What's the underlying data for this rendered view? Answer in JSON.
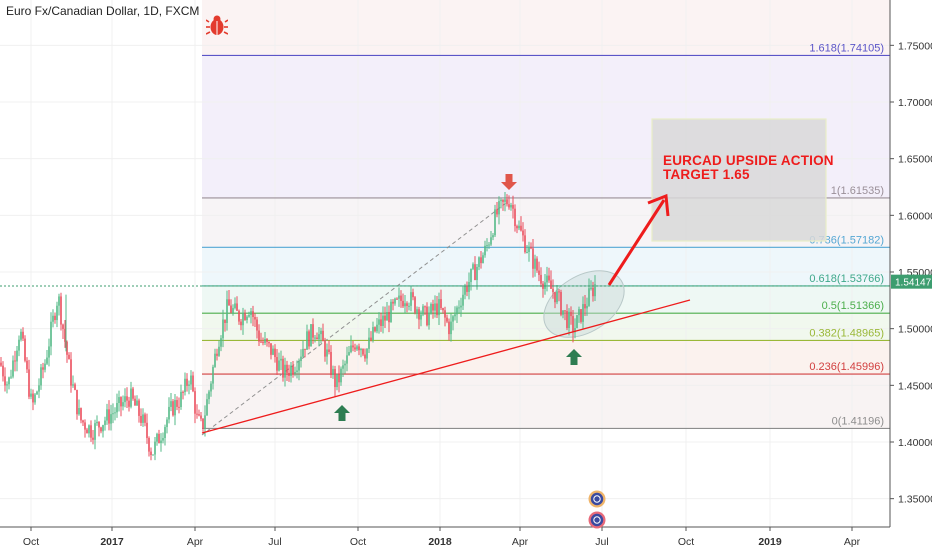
{
  "symbol_title": "Euro Fx/Canadian Dollar, 1D, FXCM",
  "annotation": {
    "line1": "EURCAD UPSIDE ACTION",
    "line2": "TARGET 1.65"
  },
  "icons": {
    "bug": "bug-icon",
    "up_arrow": "up-arrow-icon",
    "down_arrow": "down-arrow-icon",
    "event_badge": "event-badge-icon"
  },
  "colors": {
    "bug": "#e33b2e",
    "candle_up": "#53b987",
    "candle_down": "#eb4d5c",
    "arrow_up": "#2e7d52",
    "arrow_down": "#e0564a",
    "annotation": "#ee1c1c",
    "trendline": "#ee1c1c",
    "last_price_bg": "#3c9d6f"
  },
  "chart_data": {
    "type": "candlestick",
    "symbol": "Euro Fx/Canadian Dollar",
    "timeframe": "1D",
    "source": "FXCM",
    "ylim": [
      1.325,
      1.79
    ],
    "y_ticks": [
      "1.35000",
      "1.40000",
      "1.45000",
      "1.50000",
      "1.55000",
      "1.60000",
      "1.65000",
      "1.70000",
      "1.75000"
    ],
    "x_ticks": [
      "Oct",
      "2017",
      "Apr",
      "Jul",
      "Oct",
      "2018",
      "Apr",
      "Jul",
      "Oct",
      "2019",
      "Apr"
    ],
    "last_price": "1.54147",
    "fib_levels": [
      {
        "label": "1.618(1.74105)",
        "value": 1.74105,
        "color": "#5b55c8"
      },
      {
        "label": "1(1.61535)",
        "value": 1.61535,
        "color": "#9a8f98"
      },
      {
        "label": "0.786(1.57182)",
        "value": 1.57182,
        "color": "#55a7d4"
      },
      {
        "label": "0.618(1.53766)",
        "value": 1.53766,
        "color": "#3fa88a"
      },
      {
        "label": "0.5(1.51366)",
        "value": 1.51366,
        "color": "#4cae4c"
      },
      {
        "label": "0.382(1.48965)",
        "value": 1.48965,
        "color": "#9ab838"
      },
      {
        "label": "0.236(1.45996)",
        "value": 1.45996,
        "color": "#d24040"
      },
      {
        "label": "0(1.41196)",
        "value": 1.41196,
        "color": "#8d8d8d"
      }
    ],
    "price_path": [
      [
        0,
        1.47
      ],
      [
        8,
        1.45
      ],
      [
        20,
        1.5
      ],
      [
        32,
        1.43
      ],
      [
        45,
        1.47
      ],
      [
        58,
        1.53
      ],
      [
        70,
        1.46
      ],
      [
        80,
        1.42
      ],
      [
        92,
        1.41
      ],
      [
        105,
        1.42
      ],
      [
        118,
        1.43
      ],
      [
        130,
        1.44
      ],
      [
        142,
        1.42
      ],
      [
        152,
        1.39
      ],
      [
        162,
        1.41
      ],
      [
        172,
        1.43
      ],
      [
        182,
        1.44
      ],
      [
        190,
        1.46
      ],
      [
        197,
        1.42
      ],
      [
        202,
        1.412
      ],
      [
        210,
        1.45
      ],
      [
        218,
        1.49
      ],
      [
        228,
        1.52
      ],
      [
        240,
        1.51
      ],
      [
        250,
        1.52
      ],
      [
        260,
        1.49
      ],
      [
        272,
        1.48
      ],
      [
        284,
        1.46
      ],
      [
        296,
        1.47
      ],
      [
        306,
        1.49
      ],
      [
        316,
        1.5
      ],
      [
        326,
        1.48
      ],
      [
        336,
        1.45
      ],
      [
        346,
        1.47
      ],
      [
        356,
        1.49
      ],
      [
        366,
        1.48
      ],
      [
        376,
        1.5
      ],
      [
        386,
        1.51
      ],
      [
        396,
        1.52
      ],
      [
        406,
        1.53
      ],
      [
        416,
        1.52
      ],
      [
        426,
        1.51
      ],
      [
        438,
        1.52
      ],
      [
        450,
        1.5
      ],
      [
        462,
        1.53
      ],
      [
        474,
        1.55
      ],
      [
        486,
        1.57
      ],
      [
        496,
        1.6
      ],
      [
        504,
        1.61
      ],
      [
        510,
        1.615
      ],
      [
        518,
        1.59
      ],
      [
        528,
        1.57
      ],
      [
        538,
        1.55
      ],
      [
        546,
        1.54
      ],
      [
        556,
        1.53
      ],
      [
        566,
        1.51
      ],
      [
        574,
        1.5
      ],
      [
        582,
        1.515
      ],
      [
        590,
        1.53
      ],
      [
        596,
        1.54
      ]
    ]
  }
}
